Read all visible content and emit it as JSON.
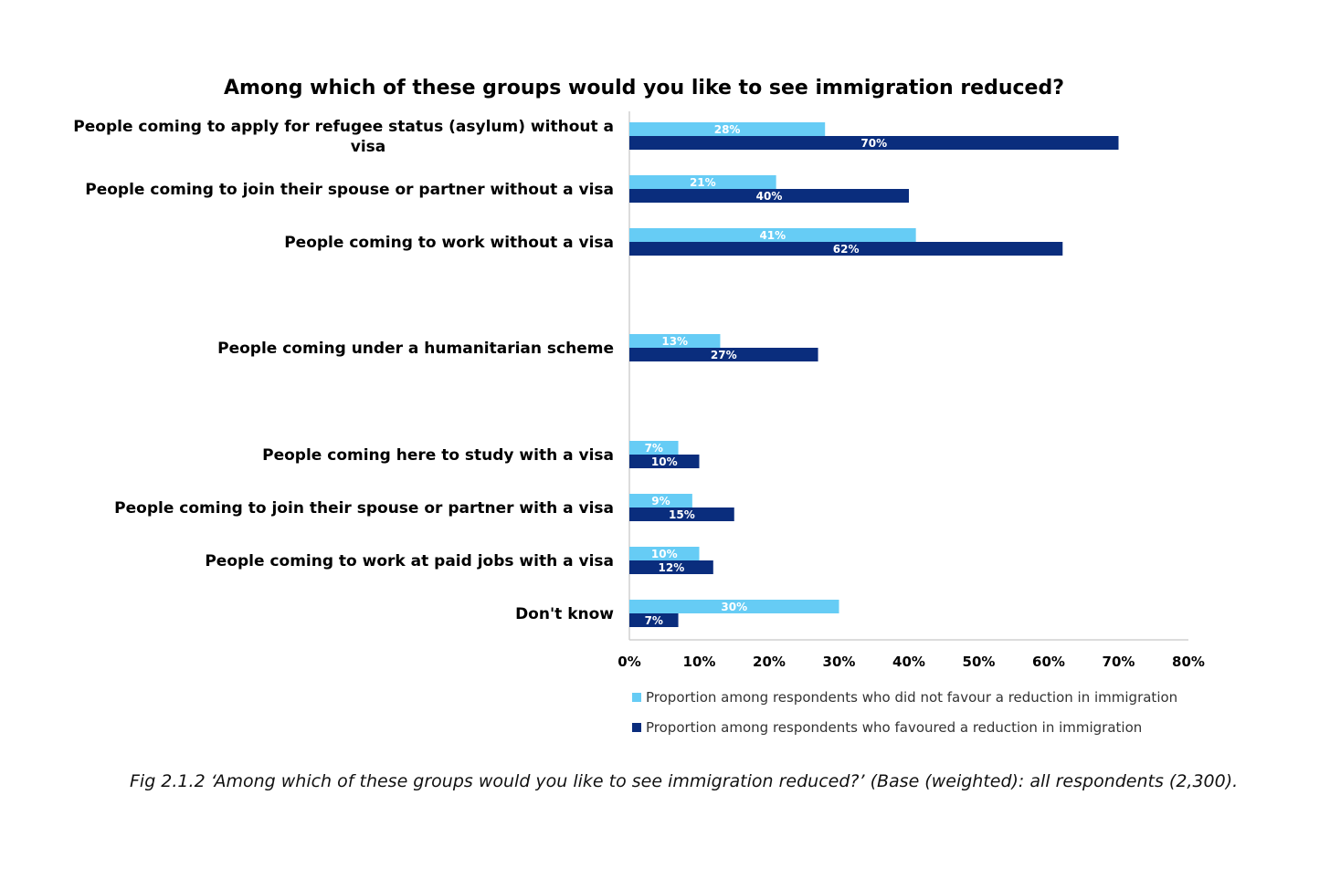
{
  "chart_data": {
    "type": "bar",
    "orientation": "horizontal",
    "title": "Among which of these groups would you like to see immigration reduced?",
    "categories": [
      "People coming to apply for refugee status (asylum) without a visa",
      "People coming to join their spouse or partner without a visa",
      "People coming to work without a visa",
      "People coming under a humanitarian scheme",
      "People coming here to study with a visa",
      "People coming to join their spouse or partner with a visa",
      "People coming to work at paid jobs with a visa",
      "Don't know"
    ],
    "category_label_lines": [
      [
        "People coming to apply for refugee status (asylum) without a",
        "visa"
      ],
      [
        "People coming to join their spouse or partner without a visa"
      ],
      [
        "People coming to work without a visa"
      ],
      [
        "People coming under a humanitarian scheme"
      ],
      [
        "People coming here to study with a visa"
      ],
      [
        "People coming to join their spouse or partner with a visa"
      ],
      [
        "People coming to work at paid jobs with a visa"
      ],
      [
        "Don't know"
      ]
    ],
    "series": [
      {
        "name": "Proportion among respondents who did not favour a reduction in immigration",
        "color": "#66ccf5",
        "values": [
          28,
          21,
          41,
          13,
          7,
          9,
          10,
          30
        ],
        "labels": [
          "28%",
          "21%",
          "41%",
          "13%",
          "7%",
          "9%",
          "10%",
          "30%"
        ]
      },
      {
        "name": "Proportion among respondents who favoured a reduction in immigration",
        "color": "#0a2d7d",
        "values": [
          70,
          40,
          62,
          27,
          10,
          15,
          12,
          7
        ],
        "labels": [
          "70%",
          "40%",
          "62%",
          "27%",
          "10%",
          "15%",
          "12%",
          "7%"
        ]
      }
    ],
    "xlim": [
      0,
      80
    ],
    "xticks": [
      "0%",
      "10%",
      "20%",
      "30%",
      "40%",
      "50%",
      "60%",
      "70%",
      "80%"
    ],
    "grid": false,
    "legend_position": "bottom"
  },
  "caption": "Fig 2.1.2 ‘Among which of these groups would you like to see immigration reduced?’ (Base (weighted): all respondents (2,300)."
}
